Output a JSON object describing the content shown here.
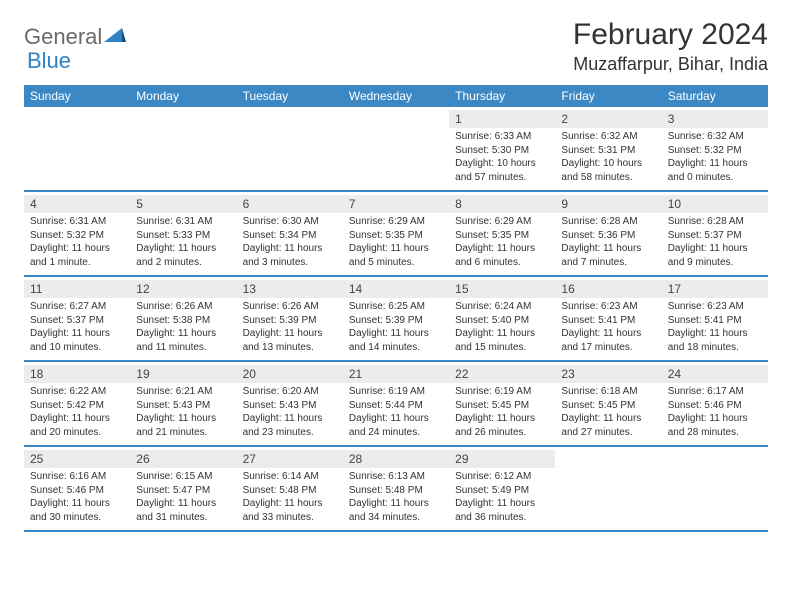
{
  "brand": {
    "part1": "General",
    "part2": "Blue"
  },
  "title": "February 2024",
  "location": "Muzaffarpur, Bihar, India",
  "colors": {
    "header_bg": "#3b88c4",
    "header_text": "#ffffff",
    "daynum_bg": "#ececec",
    "rule": "#3b88c4",
    "brand_blue": "#2f83c5",
    "brand_gray": "#6a6a6a"
  },
  "weekdays": [
    "Sunday",
    "Monday",
    "Tuesday",
    "Wednesday",
    "Thursday",
    "Friday",
    "Saturday"
  ],
  "weeks": [
    [
      {
        "n": "",
        "t": ""
      },
      {
        "n": "",
        "t": ""
      },
      {
        "n": "",
        "t": ""
      },
      {
        "n": "",
        "t": ""
      },
      {
        "n": "1",
        "t": "Sunrise: 6:33 AM\nSunset: 5:30 PM\nDaylight: 10 hours and 57 minutes."
      },
      {
        "n": "2",
        "t": "Sunrise: 6:32 AM\nSunset: 5:31 PM\nDaylight: 10 hours and 58 minutes."
      },
      {
        "n": "3",
        "t": "Sunrise: 6:32 AM\nSunset: 5:32 PM\nDaylight: 11 hours and 0 minutes."
      }
    ],
    [
      {
        "n": "4",
        "t": "Sunrise: 6:31 AM\nSunset: 5:32 PM\nDaylight: 11 hours and 1 minute."
      },
      {
        "n": "5",
        "t": "Sunrise: 6:31 AM\nSunset: 5:33 PM\nDaylight: 11 hours and 2 minutes."
      },
      {
        "n": "6",
        "t": "Sunrise: 6:30 AM\nSunset: 5:34 PM\nDaylight: 11 hours and 3 minutes."
      },
      {
        "n": "7",
        "t": "Sunrise: 6:29 AM\nSunset: 5:35 PM\nDaylight: 11 hours and 5 minutes."
      },
      {
        "n": "8",
        "t": "Sunrise: 6:29 AM\nSunset: 5:35 PM\nDaylight: 11 hours and 6 minutes."
      },
      {
        "n": "9",
        "t": "Sunrise: 6:28 AM\nSunset: 5:36 PM\nDaylight: 11 hours and 7 minutes."
      },
      {
        "n": "10",
        "t": "Sunrise: 6:28 AM\nSunset: 5:37 PM\nDaylight: 11 hours and 9 minutes."
      }
    ],
    [
      {
        "n": "11",
        "t": "Sunrise: 6:27 AM\nSunset: 5:37 PM\nDaylight: 11 hours and 10 minutes."
      },
      {
        "n": "12",
        "t": "Sunrise: 6:26 AM\nSunset: 5:38 PM\nDaylight: 11 hours and 11 minutes."
      },
      {
        "n": "13",
        "t": "Sunrise: 6:26 AM\nSunset: 5:39 PM\nDaylight: 11 hours and 13 minutes."
      },
      {
        "n": "14",
        "t": "Sunrise: 6:25 AM\nSunset: 5:39 PM\nDaylight: 11 hours and 14 minutes."
      },
      {
        "n": "15",
        "t": "Sunrise: 6:24 AM\nSunset: 5:40 PM\nDaylight: 11 hours and 15 minutes."
      },
      {
        "n": "16",
        "t": "Sunrise: 6:23 AM\nSunset: 5:41 PM\nDaylight: 11 hours and 17 minutes."
      },
      {
        "n": "17",
        "t": "Sunrise: 6:23 AM\nSunset: 5:41 PM\nDaylight: 11 hours and 18 minutes."
      }
    ],
    [
      {
        "n": "18",
        "t": "Sunrise: 6:22 AM\nSunset: 5:42 PM\nDaylight: 11 hours and 20 minutes."
      },
      {
        "n": "19",
        "t": "Sunrise: 6:21 AM\nSunset: 5:43 PM\nDaylight: 11 hours and 21 minutes."
      },
      {
        "n": "20",
        "t": "Sunrise: 6:20 AM\nSunset: 5:43 PM\nDaylight: 11 hours and 23 minutes."
      },
      {
        "n": "21",
        "t": "Sunrise: 6:19 AM\nSunset: 5:44 PM\nDaylight: 11 hours and 24 minutes."
      },
      {
        "n": "22",
        "t": "Sunrise: 6:19 AM\nSunset: 5:45 PM\nDaylight: 11 hours and 26 minutes."
      },
      {
        "n": "23",
        "t": "Sunrise: 6:18 AM\nSunset: 5:45 PM\nDaylight: 11 hours and 27 minutes."
      },
      {
        "n": "24",
        "t": "Sunrise: 6:17 AM\nSunset: 5:46 PM\nDaylight: 11 hours and 28 minutes."
      }
    ],
    [
      {
        "n": "25",
        "t": "Sunrise: 6:16 AM\nSunset: 5:46 PM\nDaylight: 11 hours and 30 minutes."
      },
      {
        "n": "26",
        "t": "Sunrise: 6:15 AM\nSunset: 5:47 PM\nDaylight: 11 hours and 31 minutes."
      },
      {
        "n": "27",
        "t": "Sunrise: 6:14 AM\nSunset: 5:48 PM\nDaylight: 11 hours and 33 minutes."
      },
      {
        "n": "28",
        "t": "Sunrise: 6:13 AM\nSunset: 5:48 PM\nDaylight: 11 hours and 34 minutes."
      },
      {
        "n": "29",
        "t": "Sunrise: 6:12 AM\nSunset: 5:49 PM\nDaylight: 11 hours and 36 minutes."
      },
      {
        "n": "",
        "t": ""
      },
      {
        "n": "",
        "t": ""
      }
    ]
  ]
}
